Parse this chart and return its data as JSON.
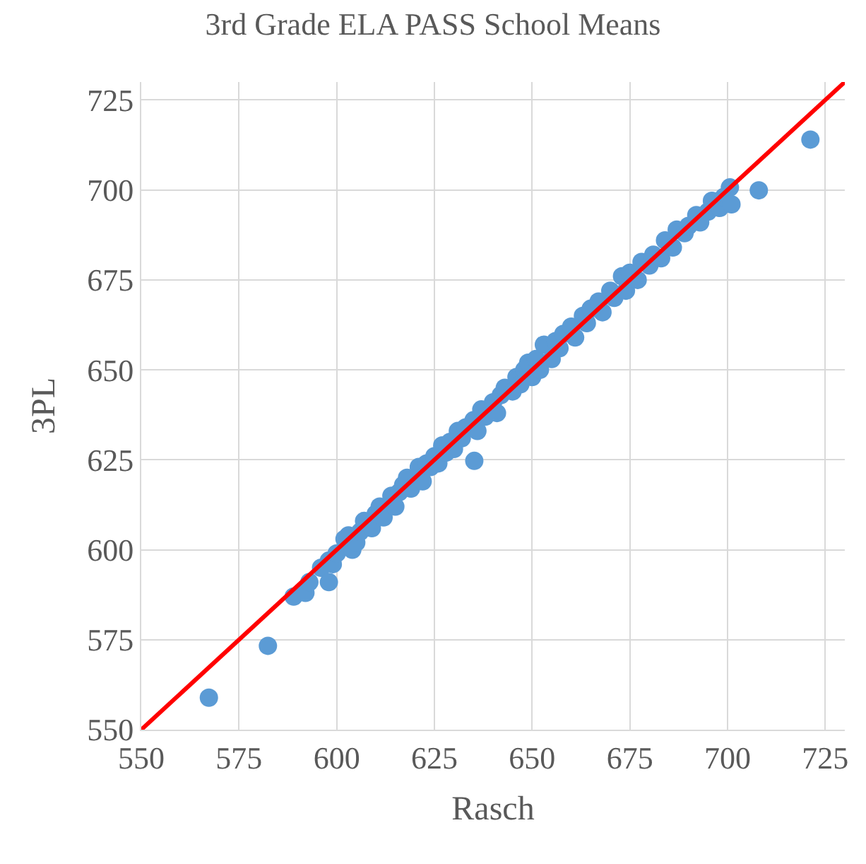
{
  "chart_data": {
    "type": "scatter",
    "title": "3rd Grade ELA PASS School Means",
    "xlabel": "Rasch",
    "ylabel": "3PL",
    "xlim": [
      550,
      730
    ],
    "ylim": [
      550,
      730
    ],
    "xticks": [
      550,
      575,
      600,
      625,
      650,
      675,
      700,
      725
    ],
    "yticks": [
      550,
      575,
      600,
      625,
      650,
      675,
      700,
      725
    ],
    "grid": true,
    "legend": false,
    "marker": "circle",
    "series": [
      {
        "color": "#5b9bd5",
        "x": [
          567.3,
          582.4,
          635.2,
          708,
          721.2,
          589,
          592,
          593,
          596,
          598,
          598,
          599,
          600,
          602,
          603,
          604,
          605,
          606,
          607,
          609,
          610,
          611,
          612,
          614,
          615,
          616,
          617,
          618,
          619,
          621,
          622,
          623,
          624,
          625,
          626,
          627,
          628,
          629,
          630,
          631,
          632,
          633,
          635,
          636,
          637,
          638,
          640,
          641,
          642,
          643,
          645,
          646,
          647,
          648,
          649,
          650,
          651,
          652,
          653,
          655,
          656,
          657,
          658,
          660,
          661,
          663,
          664,
          665,
          667,
          668,
          670,
          671,
          673,
          674,
          675,
          677,
          678,
          680,
          681,
          683,
          684,
          686,
          687,
          689,
          690,
          692,
          693,
          695,
          696,
          698,
          699,
          700.6,
          701
        ],
        "values": [
          558.9,
          573.3,
          624.7,
          699.9,
          714,
          587,
          588,
          591,
          595,
          591,
          597,
          596,
          599,
          603,
          604,
          600,
          602,
          605,
          608,
          606,
          610,
          612,
          609,
          615,
          612,
          616,
          618,
          620,
          617,
          623,
          619,
          624,
          623,
          626,
          624,
          629,
          627,
          630,
          628,
          633,
          631,
          634,
          636,
          633,
          639,
          637,
          641,
          638,
          643,
          645,
          644,
          648,
          646,
          650,
          652,
          648,
          653,
          650,
          657,
          653,
          658,
          656,
          660,
          662,
          659,
          665,
          663,
          667,
          669,
          666,
          672,
          670,
          676,
          672,
          677,
          675,
          680,
          679,
          682,
          681,
          686,
          684,
          689,
          688,
          690,
          693,
          691,
          694,
          697,
          695,
          698,
          700.7,
          696
        ]
      },
      {
        "type": "line",
        "color": "#ff0000",
        "marker": "none",
        "line_style": "solid",
        "x": [
          550,
          730
        ],
        "values": [
          550,
          730
        ]
      }
    ]
  }
}
